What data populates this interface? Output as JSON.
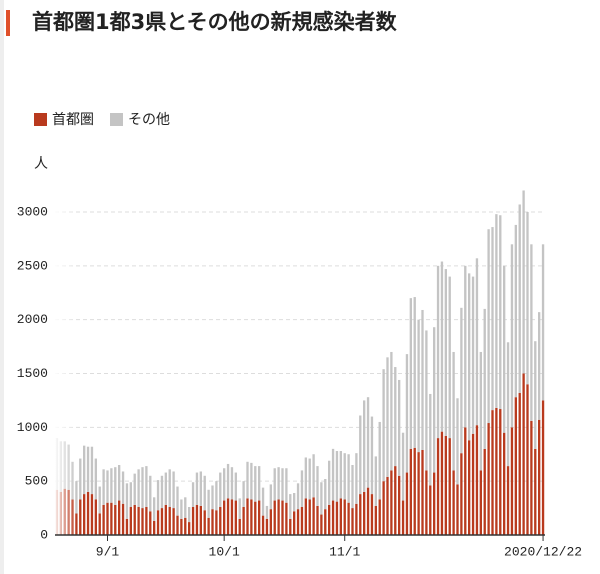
{
  "chart_data": {
    "type": "stacked_bar",
    "title": "首都圏1都3県とその他の新規感染者数",
    "y_label": "人",
    "categories": [
      null,
      null,
      null,
      null,
      null,
      null,
      null,
      null,
      null,
      null,
      null,
      null,
      null,
      "9/1",
      null,
      null,
      null,
      null,
      null,
      null,
      null,
      null,
      null,
      null,
      null,
      null,
      null,
      null,
      null,
      null,
      null,
      null,
      null,
      null,
      null,
      null,
      null,
      null,
      null,
      null,
      null,
      null,
      null,
      "10/1",
      null,
      null,
      null,
      null,
      null,
      null,
      null,
      null,
      null,
      null,
      null,
      null,
      null,
      null,
      null,
      null,
      null,
      null,
      null,
      null,
      null,
      null,
      null,
      null,
      null,
      null,
      null,
      null,
      null,
      null,
      "11/1",
      null,
      null,
      null,
      null,
      null,
      null,
      null,
      null,
      null,
      null,
      null,
      null,
      null,
      null,
      null,
      null,
      null,
      null,
      null,
      null,
      null,
      null,
      null,
      null,
      null,
      null,
      null,
      null,
      null,
      null,
      null,
      null,
      null,
      null,
      null,
      null,
      null,
      null,
      null,
      null,
      null,
      null,
      null,
      null,
      null,
      null,
      null,
      null,
      null,
      null,
      "2020/12/22"
    ],
    "series": [
      {
        "name": "首都圏",
        "color": "#b93a1e",
        "values": [
          420,
          400,
          430,
          420,
          330,
          200,
          330,
          380,
          400,
          380,
          330,
          200,
          280,
          300,
          300,
          280,
          320,
          290,
          150,
          260,
          280,
          260,
          250,
          260,
          220,
          130,
          230,
          250,
          280,
          260,
          250,
          180,
          150,
          160,
          120,
          260,
          280,
          270,
          230,
          160,
          240,
          230,
          260,
          320,
          340,
          330,
          320,
          150,
          260,
          340,
          330,
          310,
          320,
          180,
          150,
          240,
          320,
          330,
          320,
          300,
          150,
          220,
          240,
          260,
          340,
          330,
          350,
          270,
          190,
          240,
          280,
          320,
          310,
          340,
          330,
          300,
          250,
          290,
          380,
          400,
          440,
          380,
          270,
          330,
          500,
          540,
          600,
          640,
          550,
          320,
          580,
          800,
          810,
          770,
          790,
          600,
          460,
          580,
          900,
          960,
          920,
          900,
          600,
          470,
          760,
          1000,
          880,
          940,
          1020,
          600,
          800,
          1040,
          1160,
          1180,
          1170,
          950,
          640,
          1000,
          1280,
          1320,
          1500,
          1400,
          1060,
          800,
          1070,
          1250
        ]
      },
      {
        "name": "その他",
        "color": "#c4c4c4",
        "values": [
          480,
          470,
          440,
          420,
          350,
          300,
          380,
          450,
          420,
          440,
          380,
          250,
          330,
          300,
          320,
          350,
          330,
          300,
          330,
          230,
          290,
          350,
          380,
          380,
          330,
          220,
          280,
          300,
          300,
          350,
          340,
          270,
          180,
          190,
          140,
          230,
          300,
          320,
          320,
          260,
          220,
          270,
          320,
          300,
          320,
          300,
          260,
          190,
          240,
          340,
          340,
          330,
          320,
          260,
          120,
          230,
          300,
          300,
          300,
          320,
          230,
          170,
          240,
          340,
          380,
          380,
          400,
          370,
          300,
          280,
          410,
          480,
          470,
          440,
          430,
          450,
          400,
          470,
          730,
          850,
          840,
          720,
          460,
          720,
          1040,
          1110,
          1100,
          920,
          890,
          630,
          1100,
          1400,
          1400,
          1230,
          1300,
          1300,
          850,
          1350,
          1600,
          1580,
          1550,
          1500,
          1100,
          800,
          1350,
          1500,
          1550,
          1460,
          1550,
          1100,
          1300,
          1800,
          1700,
          1800,
          1800,
          1550,
          1150,
          1700,
          1600,
          1750,
          1700,
          1600,
          1640,
          1000,
          1000,
          1450
        ]
      }
    ],
    "ylim": [
      0,
      3200
    ],
    "yticks": [
      0,
      500,
      1000,
      1500,
      2000,
      2500,
      3000
    ],
    "grid": true,
    "legend": "top-left"
  }
}
